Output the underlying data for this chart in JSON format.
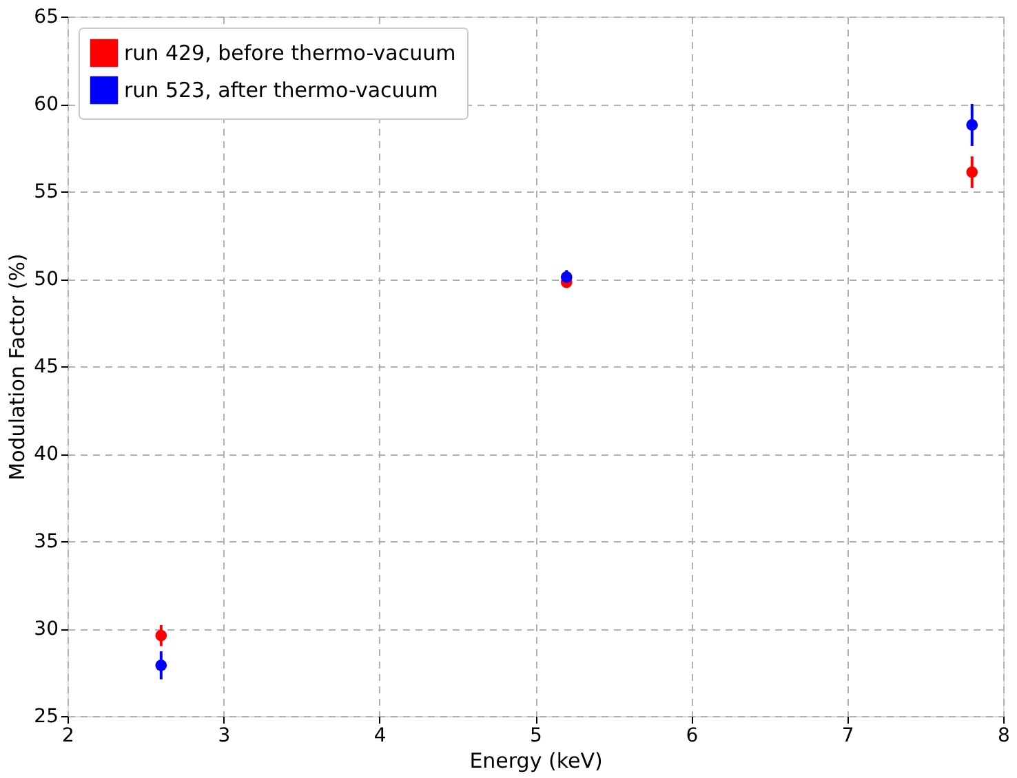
{
  "chart_data": {
    "type": "scatter",
    "xlabel": "Energy (keV)",
    "ylabel": "Modulation Factor (%)",
    "x": [
      2.6,
      5.2,
      7.8
    ],
    "series": [
      {
        "name": "run 429, before thermo-vacuum",
        "color": "#ff0000",
        "values": [
          29.6,
          49.8,
          56.1
        ],
        "errors": [
          0.6,
          0.3,
          0.9
        ]
      },
      {
        "name": "run 523, after thermo-vacuum",
        "color": "#0000ff",
        "values": [
          27.9,
          50.1,
          58.8
        ],
        "errors": [
          0.8,
          0.4,
          1.2
        ]
      }
    ],
    "xlim": [
      2,
      8
    ],
    "xticks": [
      2,
      3,
      4,
      5,
      6,
      7,
      8
    ],
    "ylim": [
      25,
      65
    ],
    "yticks": [
      25,
      30,
      35,
      40,
      45,
      50,
      55,
      60,
      65
    ],
    "grid": true,
    "legend": "top left",
    "marker": "circle"
  }
}
